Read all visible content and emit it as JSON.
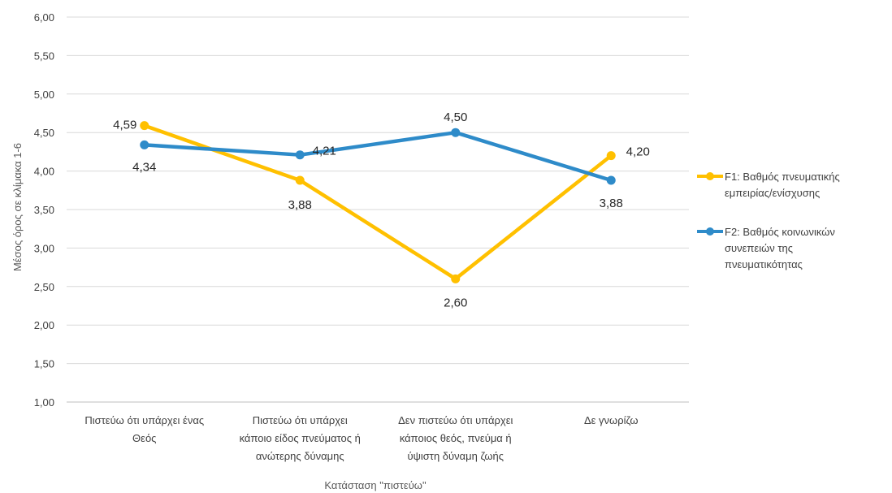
{
  "chart_data": {
    "type": "line",
    "categories": [
      [
        "Πιστεύω ότι υπάρχει ένας",
        "Θεός"
      ],
      [
        "Πιστεύω ότι υπάρχει",
        "κάποιο είδος πνεύματος ή",
        "ανώτερης δύναμης"
      ],
      [
        "Δεν πιστεύω ότι υπάρχει",
        "κάποιος θεός, πνεύμα ή",
        "ύψιστη δύναμη ζωής"
      ],
      [
        "Δε γνωρίζω"
      ]
    ],
    "series": [
      {
        "name": "F1: Βαθμός πνευματικής εμπειρίας/ενίσχυσης",
        "name_lines": [
          "F1: Βαθμός πνευματικής",
          "εμπειρίας/ενίσχυσης"
        ],
        "color": "#FFC000",
        "values": [
          4.59,
          3.88,
          2.6,
          4.2
        ],
        "labels": [
          "4,59",
          "3,88",
          "2,60",
          "4,20"
        ]
      },
      {
        "name": "F2: Βαθμός κοινωνικών συνεπειών της πνευματικότητας",
        "name_lines": [
          "F2: Βαθμός κοινωνικών",
          "συνεπειών της",
          "πνευματικότητας"
        ],
        "color": "#2E8BC9",
        "values": [
          4.34,
          4.21,
          4.5,
          3.88
        ],
        "labels": [
          "4,34",
          "4,21",
          "4,50",
          "3,88"
        ]
      }
    ],
    "xlabel": "Κατάσταση \"πιστεύω\"",
    "ylabel": "Μέσος όρος σε κλίμακα 1-6",
    "ylim": [
      1,
      6
    ],
    "yticks": [
      1,
      1.5,
      2,
      2.5,
      3,
      3.5,
      4,
      4.5,
      5,
      5.5,
      6
    ],
    "ytick_labels": [
      "1,00",
      "1,50",
      "2,00",
      "2,50",
      "3,00",
      "3,50",
      "4,00",
      "4,50",
      "5,00",
      "5,50",
      "6,00"
    ],
    "grid": true,
    "legend_position": "right"
  }
}
